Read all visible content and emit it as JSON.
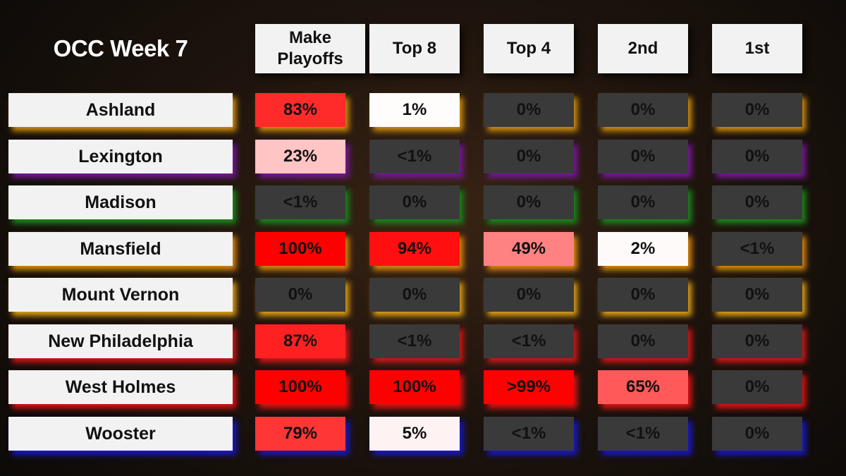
{
  "title": "OCC Week 7",
  "chart_data": {
    "type": "table",
    "title": "OCC Week 7",
    "columns": [
      "Make Playoffs",
      "Top 8",
      "Top 4",
      "2nd",
      "1st"
    ],
    "rows": [
      {
        "team": "Ashland",
        "glow": "#d4900f",
        "cells": [
          {
            "label": "83%",
            "value": 83
          },
          {
            "label": "1%",
            "value": 1
          },
          {
            "label": "0%",
            "value": 0
          },
          {
            "label": "0%",
            "value": 0
          },
          {
            "label": "0%",
            "value": 0
          }
        ]
      },
      {
        "team": "Lexington",
        "glow": "#7a1a9a",
        "cells": [
          {
            "label": "23%",
            "value": 23
          },
          {
            "label": "<1%",
            "value": 0.5
          },
          {
            "label": "0%",
            "value": 0
          },
          {
            "label": "0%",
            "value": 0
          },
          {
            "label": "0%",
            "value": 0
          }
        ]
      },
      {
        "team": "Madison",
        "glow": "#1f8a1f",
        "cells": [
          {
            "label": "<1%",
            "value": 0.5
          },
          {
            "label": "0%",
            "value": 0
          },
          {
            "label": "0%",
            "value": 0
          },
          {
            "label": "0%",
            "value": 0
          },
          {
            "label": "0%",
            "value": 0
          }
        ]
      },
      {
        "team": "Mansfield",
        "glow": "#e08a10",
        "cells": [
          {
            "label": "100%",
            "value": 100
          },
          {
            "label": "94%",
            "value": 94
          },
          {
            "label": "49%",
            "value": 49
          },
          {
            "label": "2%",
            "value": 2
          },
          {
            "label": "<1%",
            "value": 0.5
          }
        ]
      },
      {
        "team": "Mount Vernon",
        "glow": "#e0a21a",
        "cells": [
          {
            "label": "0%",
            "value": 0
          },
          {
            "label": "0%",
            "value": 0
          },
          {
            "label": "0%",
            "value": 0
          },
          {
            "label": "0%",
            "value": 0
          },
          {
            "label": "0%",
            "value": 0
          }
        ]
      },
      {
        "team": "New Philadelphia",
        "glow": "#d41a1a",
        "cells": [
          {
            "label": "87%",
            "value": 87
          },
          {
            "label": "<1%",
            "value": 0.5
          },
          {
            "label": "<1%",
            "value": 0.5
          },
          {
            "label": "0%",
            "value": 0
          },
          {
            "label": "0%",
            "value": 0
          }
        ]
      },
      {
        "team": "West Holmes",
        "glow": "#e01515",
        "cells": [
          {
            "label": "100%",
            "value": 100
          },
          {
            "label": "100%",
            "value": 100
          },
          {
            "label": ">99%",
            "value": 99.5
          },
          {
            "label": "65%",
            "value": 65
          },
          {
            "label": "0%",
            "value": 0
          }
        ]
      },
      {
        "team": "Wooster",
        "glow": "#1a1acc",
        "cells": [
          {
            "label": "79%",
            "value": 79
          },
          {
            "label": "5%",
            "value": 5
          },
          {
            "label": "<1%",
            "value": 0.5
          },
          {
            "label": "<1%",
            "value": 0.5
          },
          {
            "label": "0%",
            "value": 0
          }
        ]
      }
    ]
  },
  "colors": {
    "background": "#1e140d",
    "header_fill": "#f2f2f2",
    "zero_fill": "#3a3a3a",
    "low_fill": "#ffffff",
    "high_fill": "#ff0000"
  }
}
